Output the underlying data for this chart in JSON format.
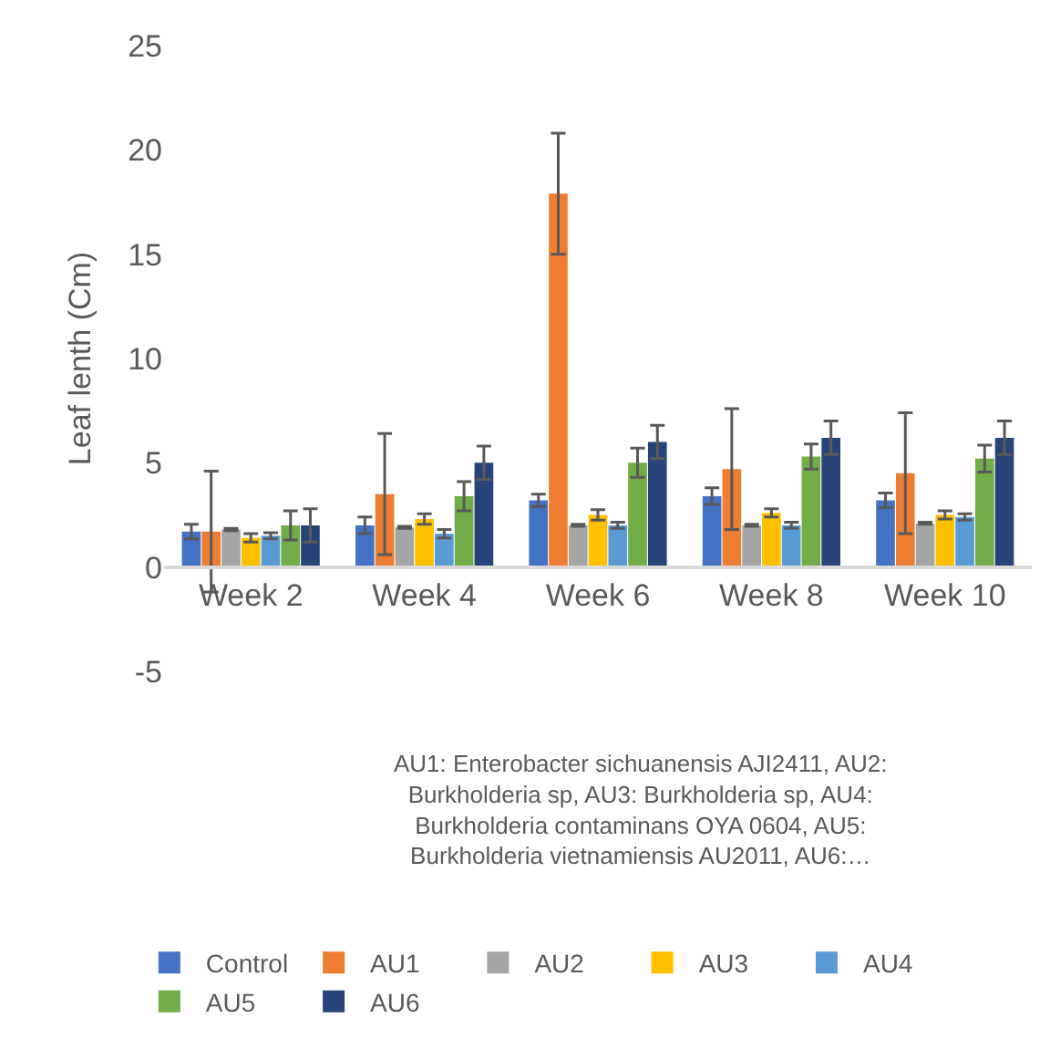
{
  "chart_data": {
    "type": "bar",
    "ylabel": "Leaf lenth (Cm)",
    "categories": [
      "Week 2",
      "Week 4",
      "Week 6",
      "Week 8",
      "Week 10"
    ],
    "series": [
      {
        "name": "Control",
        "color": "#4472c4",
        "values": [
          1.7,
          2.0,
          3.2,
          3.4,
          3.2
        ],
        "errors": [
          0.35,
          0.4,
          0.3,
          0.4,
          0.35
        ]
      },
      {
        "name": "AU1",
        "color": "#ed7d31",
        "values": [
          1.7,
          3.5,
          17.9,
          4.7,
          4.5
        ],
        "errors": [
          2.9,
          2.9,
          2.9,
          2.9,
          2.9
        ]
      },
      {
        "name": "AU2",
        "color": "#a5a5a5",
        "values": [
          1.8,
          1.9,
          2.0,
          2.0,
          2.1
        ],
        "errors": [
          0.05,
          0.05,
          0.05,
          0.05,
          0.05
        ]
      },
      {
        "name": "AU3",
        "color": "#ffc000",
        "values": [
          1.4,
          2.3,
          2.5,
          2.6,
          2.5
        ],
        "errors": [
          0.2,
          0.25,
          0.25,
          0.2,
          0.2
        ]
      },
      {
        "name": "AU4",
        "color": "#5b9bd5",
        "values": [
          1.5,
          1.6,
          2.0,
          2.0,
          2.4
        ],
        "errors": [
          0.15,
          0.2,
          0.15,
          0.15,
          0.15
        ]
      },
      {
        "name": "AU5",
        "color": "#70ad47",
        "values": [
          2.0,
          3.4,
          5.0,
          5.3,
          5.2
        ],
        "errors": [
          0.7,
          0.7,
          0.7,
          0.6,
          0.65
        ]
      },
      {
        "name": "AU6",
        "color": "#264478",
        "values": [
          2.0,
          5.0,
          6.0,
          6.2,
          6.2
        ],
        "errors": [
          0.8,
          0.8,
          0.8,
          0.8,
          0.8
        ]
      }
    ],
    "ylim": [
      -5,
      25
    ],
    "yticks": [
      -5,
      0,
      5,
      10,
      15,
      20,
      25
    ],
    "legend": "bottom",
    "annotations": [
      "AU1: Enterobacter sichuanensis AJI2411, AU2: Burkholderia sp, AU3: Burkholderia sp, AU4: Burkholderia contaminans OYA 0604, AU5: Burkholderia vietnamiensis AU2011, AU6:…"
    ]
  }
}
